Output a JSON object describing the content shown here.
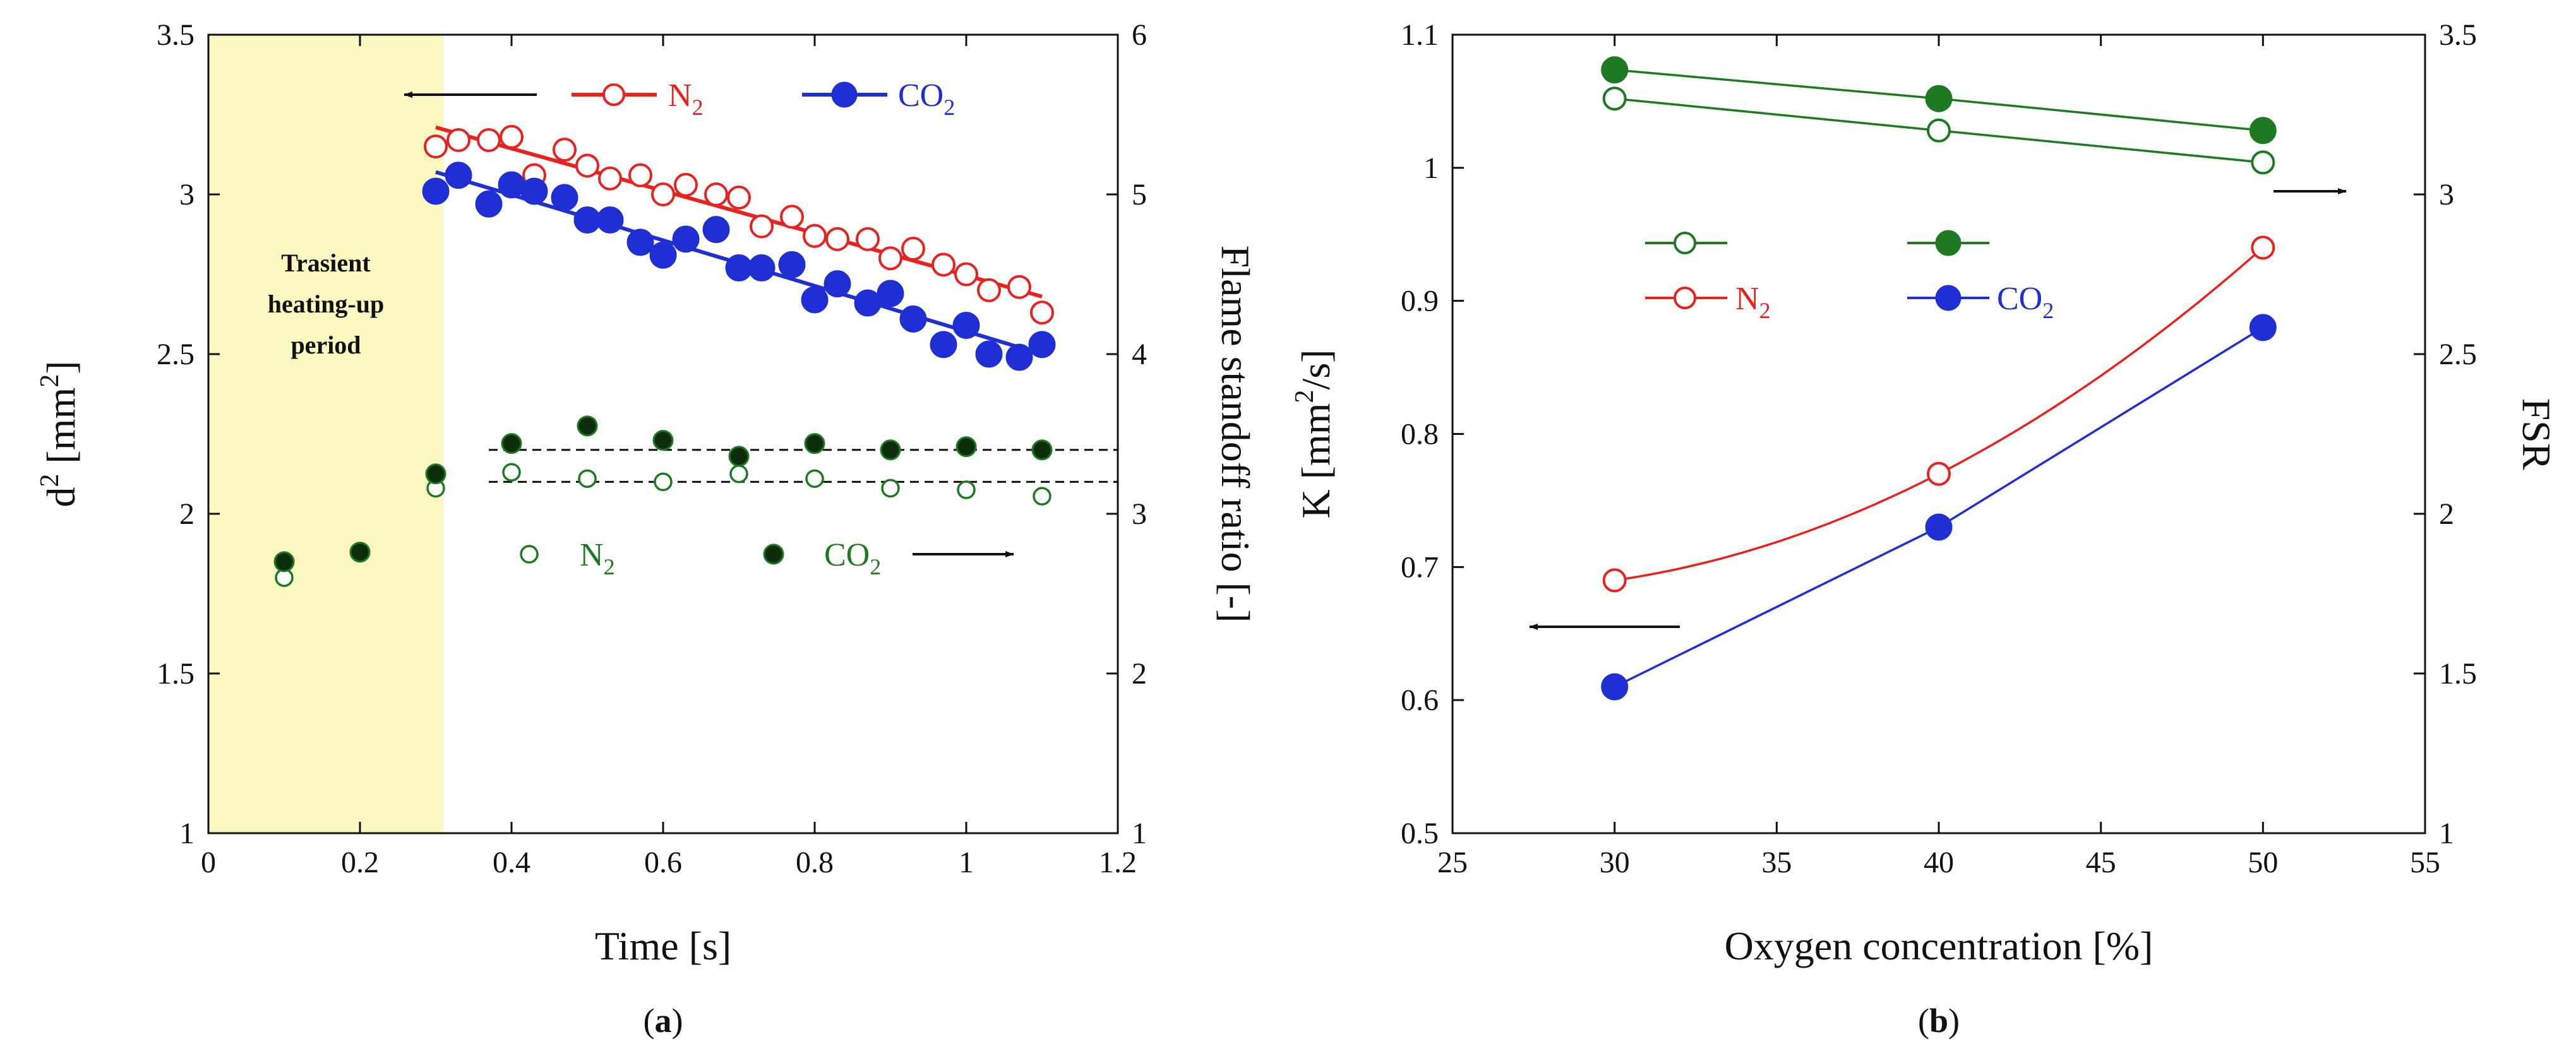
{
  "chart_data": [
    {
      "panel": "a",
      "type": "scatter",
      "panel_label": "a",
      "xlabel": "Time [s]",
      "ylabel_left": "d2 [mm2]",
      "ylabel_left_base": "d",
      "ylabel_left_sup": "2",
      "ylabel_left_unit": " [mm",
      "ylabel_left_unit_sup": "2",
      "ylabel_left_close": "]",
      "ylabel_right": "Flame standoff ratio [-]",
      "xlim": [
        0,
        1.2
      ],
      "ylim_left": [
        1,
        3.5
      ],
      "ylim_right": [
        1,
        6
      ],
      "x_ticks": [
        "0",
        "0.2",
        "0.4",
        "0.6",
        "0.8",
        "1",
        "1.2"
      ],
      "y_ticks_left": [
        "1",
        "1.5",
        "2",
        "2.5",
        "3",
        "3.5"
      ],
      "y_ticks_right": [
        "1",
        "2",
        "3",
        "4",
        "5",
        "6"
      ],
      "shaded_region": {
        "x_range": [
          0,
          0.3
        ],
        "color": "#fbf8c2",
        "label_lines": [
          "Trasient",
          "heating-up",
          "period"
        ]
      },
      "series": [
        {
          "name": "N2",
          "axis": "left",
          "marker": "open-circle",
          "color": "#e8231f",
          "x": [
            0.3,
            0.33,
            0.37,
            0.4,
            0.43,
            0.47,
            0.5,
            0.53,
            0.57,
            0.6,
            0.63,
            0.67,
            0.7,
            0.73,
            0.77,
            0.8,
            0.83,
            0.87,
            0.9,
            0.93,
            0.97,
            1.0,
            1.03,
            1.07,
            1.1
          ],
          "y": [
            3.15,
            3.17,
            3.17,
            3.18,
            3.06,
            3.14,
            3.09,
            3.05,
            3.06,
            3.0,
            3.03,
            3.0,
            2.99,
            2.9,
            2.93,
            2.87,
            2.86,
            2.86,
            2.8,
            2.83,
            2.78,
            2.75,
            2.7,
            2.71,
            2.63
          ]
        },
        {
          "name": "CO2",
          "axis": "left",
          "marker": "filled-circle",
          "color": "#1f2fd3",
          "x": [
            0.3,
            0.33,
            0.37,
            0.4,
            0.43,
            0.47,
            0.5,
            0.53,
            0.57,
            0.6,
            0.63,
            0.67,
            0.7,
            0.73,
            0.77,
            0.8,
            0.83,
            0.87,
            0.9,
            0.93,
            0.97,
            1.0,
            1.03,
            1.07,
            1.1
          ],
          "y": [
            3.01,
            3.06,
            2.97,
            3.03,
            3.01,
            2.99,
            2.92,
            2.92,
            2.85,
            2.81,
            2.86,
            2.89,
            2.77,
            2.77,
            2.78,
            2.67,
            2.72,
            2.66,
            2.69,
            2.61,
            2.53,
            2.59,
            2.5,
            2.49,
            2.53
          ]
        },
        {
          "name": "N2 FSR",
          "axis": "right",
          "marker": "open-circle",
          "color": "#1d7a22",
          "x": [
            0.1,
            0.3,
            0.4,
            0.5,
            0.6,
            0.7,
            0.8,
            0.9,
            1.0,
            1.1
          ],
          "y": [
            2.6,
            3.16,
            3.26,
            3.22,
            3.2,
            3.25,
            3.22,
            3.16,
            3.15,
            3.11
          ]
        },
        {
          "name": "CO2 FSR",
          "axis": "right",
          "marker": "filled-circle",
          "color": "#0d2d0d",
          "edge": "#1d7a22",
          "x": [
            0.1,
            0.2,
            0.3,
            0.4,
            0.5,
            0.6,
            0.7,
            0.8,
            0.9,
            1.0,
            1.1
          ],
          "y": [
            2.7,
            2.76,
            3.25,
            3.44,
            3.55,
            3.46,
            3.36,
            3.44,
            3.4,
            3.42,
            3.4
          ]
        }
      ],
      "fit_lines": [
        {
          "series": "N2",
          "axis": "left",
          "color": "#e8231f",
          "x": [
            0.3,
            1.1
          ],
          "y": [
            3.21,
            2.68
          ]
        },
        {
          "series": "CO2",
          "axis": "left",
          "color": "#1f2fd3",
          "x": [
            0.3,
            1.1
          ],
          "y": [
            3.07,
            2.5
          ]
        },
        {
          "series": "N2 FSR",
          "axis": "right",
          "style": "dashed",
          "color": "#111111",
          "x": [
            0.37,
            1.2
          ],
          "y": [
            3.2,
            3.2
          ]
        },
        {
          "series": "CO2 FSR",
          "axis": "right",
          "style": "dashed",
          "color": "#111111",
          "x": [
            0.37,
            1.2
          ],
          "y": [
            3.4,
            3.4
          ]
        }
      ],
      "legend": [
        {
          "label": "N",
          "sub": "2",
          "color": "#e8231f",
          "marker": "open-circle"
        },
        {
          "label": "CO",
          "sub": "2",
          "color": "#1f2fd3",
          "marker": "filled-circle"
        },
        {
          "label": "N",
          "sub": "2",
          "color": "#1d7a22",
          "marker": "open-circle"
        },
        {
          "label": "CO",
          "sub": "2",
          "color": "#1d7a22",
          "marker": "filled-circle"
        }
      ]
    },
    {
      "panel": "b",
      "type": "line",
      "panel_label": "b",
      "xlabel": "Oxygen concentration [%]",
      "ylabel_left": "K [mm2/s]",
      "ylabel_left_base": "K [mm",
      "ylabel_left_sup": "2",
      "ylabel_left_close": "/s]",
      "ylabel_right": "FSR",
      "xlim": [
        25,
        55
      ],
      "ylim_left": [
        0.5,
        1.1
      ],
      "ylim_right": [
        1,
        3.5
      ],
      "x_ticks": [
        "25",
        "30",
        "35",
        "40",
        "45",
        "50",
        "55"
      ],
      "y_ticks_left": [
        "0.5",
        "0.6",
        "0.7",
        "0.8",
        "0.9",
        "1",
        "1.1"
      ],
      "y_ticks_right": [
        "1",
        "1.5",
        "2",
        "2.5",
        "3",
        "3.5"
      ],
      "series": [
        {
          "name": "N2 K",
          "axis": "left",
          "marker": "open-circle",
          "color": "#e8231f",
          "x": [
            30,
            40,
            50
          ],
          "y": [
            0.69,
            0.77,
            0.94
          ],
          "curve": "smooth"
        },
        {
          "name": "CO2 K",
          "axis": "left",
          "marker": "filled-circle",
          "color": "#1f2fd3",
          "x": [
            30,
            40,
            50
          ],
          "y": [
            0.61,
            0.73,
            0.88
          ],
          "curve": "linear"
        },
        {
          "name": "N2 FSR",
          "axis": "right",
          "marker": "open-circle",
          "color": "#1d7a22",
          "x": [
            30,
            40,
            50
          ],
          "y": [
            3.3,
            3.2,
            3.1
          ],
          "curve": "linear"
        },
        {
          "name": "CO2 FSR",
          "axis": "right",
          "marker": "filled-circle",
          "color": "#1d7a22",
          "x": [
            30,
            40,
            50
          ],
          "y": [
            3.39,
            3.3,
            3.2
          ],
          "curve": "linear"
        }
      ],
      "legend": [
        {
          "label": "",
          "color": "#1d7a22",
          "marker": "open-circle"
        },
        {
          "label": "",
          "color": "#1d7a22",
          "marker": "filled-circle"
        },
        {
          "label": "N",
          "sub": "2",
          "color": "#e8231f",
          "marker": "open-circle"
        },
        {
          "label": "CO",
          "sub": "2",
          "color": "#1f2fd3",
          "marker": "filled-circle"
        }
      ]
    }
  ]
}
